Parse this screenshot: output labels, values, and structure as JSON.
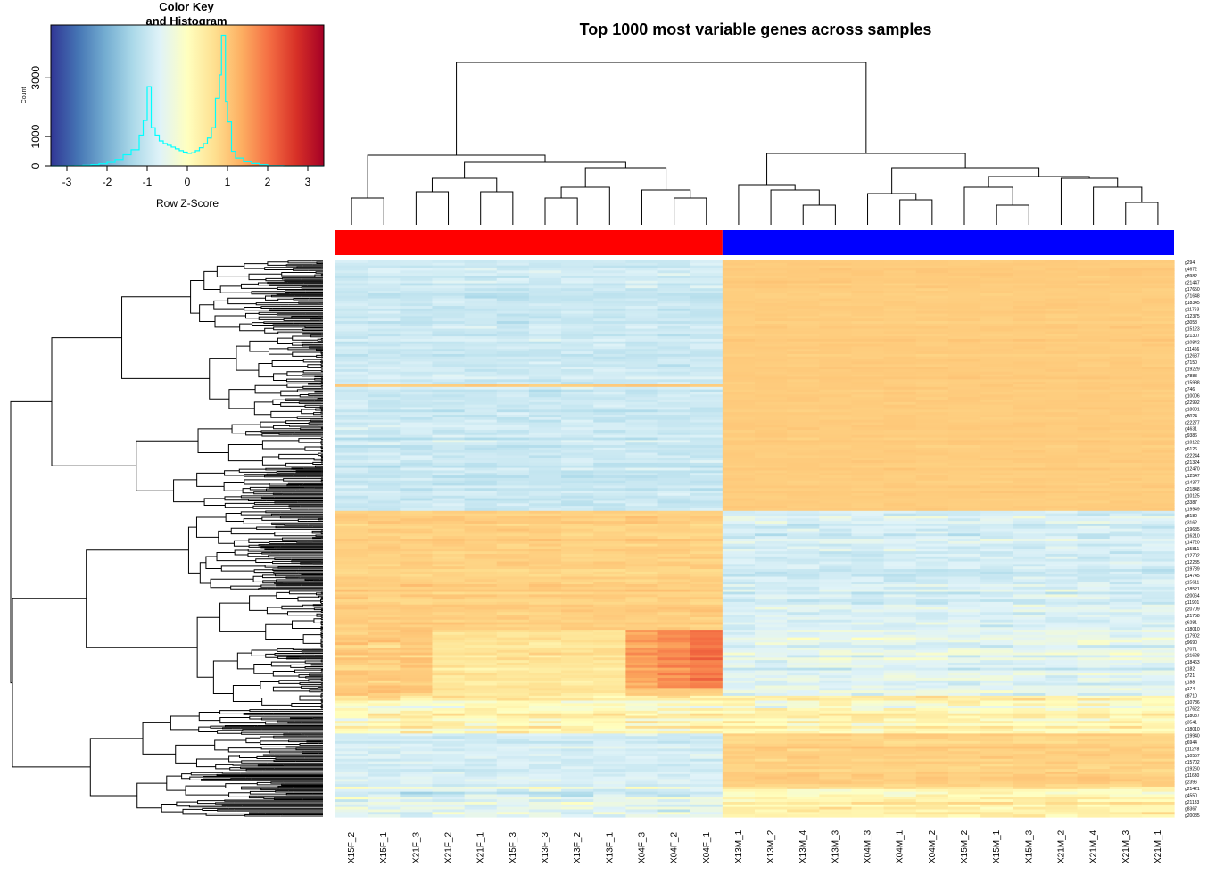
{
  "chart_data": {
    "type": "heatmap",
    "title": "Top 1000 most variable genes across samples",
    "columns": [
      "X15F_2",
      "X15F_1",
      "X21F_3",
      "X21F_2",
      "X21F_1",
      "X15F_3",
      "X13F_3",
      "X13F_2",
      "X13F_1",
      "X04F_3",
      "X04F_2",
      "X04F_1",
      "X13M_1",
      "X13M_2",
      "X13M_4",
      "X13M_3",
      "X04M_3",
      "X04M_1",
      "X04M_2",
      "X15M_2",
      "X15M_1",
      "X15M_3",
      "X21M_2",
      "X21M_4",
      "X21M_3",
      "X21M_1"
    ],
    "column_groups": [
      {
        "color": "#ff0000",
        "columns": [
          "X15F_2",
          "X15F_1",
          "X21F_3",
          "X21F_2",
          "X21F_1",
          "X15F_3",
          "X13F_3",
          "X13F_2",
          "X13F_1",
          "X04F_3",
          "X04F_2",
          "X04F_1"
        ]
      },
      {
        "color": "#0000ff",
        "columns": [
          "X13M_1",
          "X13M_2",
          "X13M_4",
          "X13M_3",
          "X04M_3",
          "X04M_1",
          "X04M_2",
          "X15M_2",
          "X15M_1",
          "X15M_3",
          "X21M_2",
          "X21M_4",
          "X21M_3",
          "X21M_1"
        ]
      }
    ],
    "row_count": 1000,
    "row_labels_shown": [
      "g294",
      "g4672",
      "g8982",
      "g21447",
      "g17650",
      "g71648",
      "g18345",
      "g11763",
      "g12375",
      "g3058",
      "g15123",
      "g21307",
      "g10842",
      "g11466",
      "g12637",
      "g7150",
      "g19229",
      "g7883",
      "g15988",
      "g746",
      "g10006",
      "g22992",
      "g18031",
      "g8024",
      "g22277",
      "g4631",
      "g9386",
      "g10122",
      "g6126",
      "g22244",
      "g21324",
      "g12470",
      "g12547",
      "g14377",
      "g21848",
      "g10125",
      "g3387",
      "g19949",
      "g8180",
      "g3162",
      "g19635",
      "g16210",
      "g14720",
      "g15811",
      "g12702",
      "g12235",
      "g19739",
      "g14745",
      "g15611",
      "g18521",
      "g20064",
      "g11901",
      "g20709",
      "g21758",
      "g6281",
      "g18010",
      "g17902",
      "g9690",
      "g7071",
      "g21628",
      "g18463",
      "g182",
      "g721",
      "g188",
      "g174",
      "g8710",
      "g10786",
      "g17622",
      "g18037",
      "g3541",
      "g18010",
      "g19940",
      "g6944",
      "g11278",
      "g10557",
      "g15702",
      "g19260",
      "g11630",
      "g2396",
      "g21421",
      "g4550",
      "g21133",
      "g8367",
      "g20085"
    ],
    "color_key": {
      "title": "Color Key\nand Histogram",
      "xlabel": "Row Z-Score",
      "ylabel": "Count",
      "x_ticks": [
        -3,
        -2,
        -1,
        0,
        1,
        2,
        3
      ],
      "y_ticks": [
        0,
        1000,
        3000
      ],
      "xlim": [
        -3.4,
        3.4
      ],
      "ylim": [
        0,
        4800
      ],
      "palette": [
        "#313695",
        "#4575b4",
        "#74add1",
        "#abd9e9",
        "#e0f3f8",
        "#ffffbf",
        "#fee090",
        "#fdae61",
        "#f46d43",
        "#d73027",
        "#a50026"
      ],
      "histogram_color": "#00ffff",
      "histogram": {
        "bin_edges": [
          -3.4,
          -3.2,
          -3.0,
          -2.8,
          -2.6,
          -2.4,
          -2.2,
          -2.0,
          -1.8,
          -1.6,
          -1.4,
          -1.2,
          -1.1,
          -1.0,
          -0.9,
          -0.8,
          -0.7,
          -0.6,
          -0.5,
          -0.4,
          -0.3,
          -0.2,
          -0.1,
          0.0,
          0.1,
          0.2,
          0.3,
          0.4,
          0.5,
          0.6,
          0.7,
          0.8,
          0.85,
          0.9,
          0.95,
          1.0,
          1.1,
          1.2,
          1.4,
          1.6,
          1.8,
          2.0,
          2.4,
          3.4
        ],
        "counts": [
          0,
          0,
          5,
          10,
          20,
          40,
          70,
          120,
          220,
          380,
          550,
          1050,
          1550,
          2700,
          1300,
          1050,
          850,
          760,
          700,
          640,
          580,
          520,
          470,
          430,
          450,
          520,
          620,
          760,
          950,
          1300,
          2300,
          3100,
          4450,
          4450,
          2200,
          1500,
          500,
          270,
          140,
          80,
          40,
          10,
          0
        ]
      }
    }
  }
}
